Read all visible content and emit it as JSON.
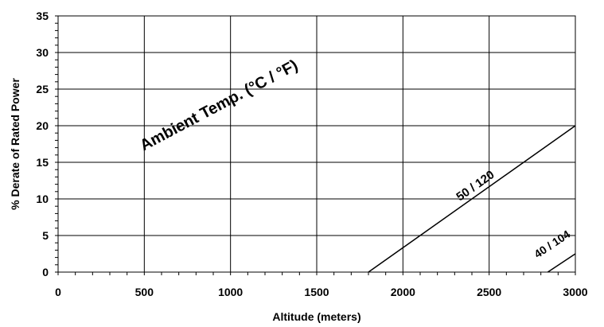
{
  "chart_data": {
    "type": "line",
    "title": "",
    "xlabel": "Altitude (meters)",
    "ylabel": "% Derate of Rated Power",
    "xlim": [
      0,
      3000
    ],
    "ylim": [
      0,
      35
    ],
    "x_ticks": [
      0,
      500,
      1000,
      1500,
      2000,
      2500,
      3000
    ],
    "y_ticks": [
      0,
      5,
      10,
      15,
      20,
      25,
      30,
      35
    ],
    "x_tick_labels": [
      "0",
      "500",
      "1000",
      "1500",
      "2000",
      "2500",
      "3000"
    ],
    "y_tick_labels": [
      "0",
      "5",
      "10",
      "15",
      "20",
      "25",
      "30",
      "35"
    ],
    "grid": true,
    "annotation": "Ambient Temp. (°C / °F)",
    "series": [
      {
        "name": "50 / 120",
        "x": [
          1800,
          3000
        ],
        "y": [
          0,
          20
        ]
      },
      {
        "name": "40 / 104",
        "x": [
          2840,
          3000
        ],
        "y": [
          0,
          2.5
        ]
      }
    ]
  }
}
